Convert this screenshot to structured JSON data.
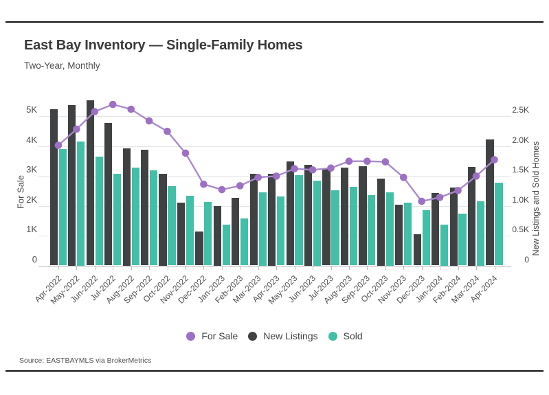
{
  "header": {
    "title": "East Bay Inventory — Single-Family Homes",
    "subtitle": "Two-Year, Monthly"
  },
  "source": {
    "text": "Source:  EASTBAYMLS via BrokerMetrics"
  },
  "colors": {
    "new_listings_bar": "#3f4142",
    "sold_bar": "#42bfa7",
    "for_sale_line": "#a98acb",
    "for_sale_dot": "#9c70c2",
    "gridline": "#e4e4e4",
    "baseline": "#c2c2c2"
  },
  "legend": {
    "items": [
      {
        "label": "For Sale",
        "color": "#9c70c2"
      },
      {
        "label": "New Listings",
        "color": "#3f4142"
      },
      {
        "label": "Sold",
        "color": "#42bfa7"
      }
    ]
  },
  "chart_data": {
    "type": "bar",
    "subtype": "grouped bars with overlaid line",
    "title": "East Bay Inventory — Single-Family Homes",
    "subtitle": "Two-Year, Monthly",
    "categories": [
      "Apr-2022",
      "May-2022",
      "Jun-2022",
      "Jul-2022",
      "Aug-2022",
      "Sep-2022",
      "Oct-2022",
      "Nov-2022",
      "Dec-2022",
      "Jan-2023",
      "Feb-2023",
      "Mar-2023",
      "Apr-2023",
      "May-2023",
      "Jun-2023",
      "Jul-2023",
      "Aug-2023",
      "Sep-2023",
      "Oct-2023",
      "Nov-2023",
      "Dec-2023",
      "Jan-2024",
      "Feb-2024",
      "Mar-2024",
      "Apr-2024"
    ],
    "series": [
      {
        "name": "For Sale",
        "type": "line",
        "axis": "left",
        "values": [
          4020,
          4560,
          5150,
          5390,
          5230,
          4840,
          4490,
          3760,
          2720,
          2540,
          2670,
          2950,
          2990,
          3240,
          3200,
          3260,
          3490,
          3490,
          3470,
          2950,
          2150,
          2280,
          2510,
          2990,
          3540
        ]
      },
      {
        "name": "New Listings",
        "type": "bar",
        "axis": "right",
        "values": [
          2620,
          2690,
          2760,
          2390,
          1960,
          1940,
          1540,
          1050,
          570,
          1000,
          1130,
          1530,
          1540,
          1740,
          1690,
          1610,
          1640,
          1660,
          1460,
          1020,
          520,
          1210,
          1310,
          1650,
          2110
        ]
      },
      {
        "name": "Sold",
        "type": "bar",
        "axis": "right",
        "values": [
          1950,
          2080,
          1820,
          1530,
          1640,
          1590,
          1330,
          1170,
          1060,
          680,
          790,
          1230,
          1160,
          1510,
          1420,
          1260,
          1320,
          1180,
          1230,
          1050,
          930,
          690,
          870,
          1080,
          1380
        ]
      }
    ],
    "left_axis": {
      "title": "For Sale",
      "ticks": [
        "0",
        "1K",
        "2K",
        "3K",
        "4K",
        "5K"
      ],
      "range": [
        0,
        5000
      ]
    },
    "right_axis": {
      "title": "New Listings and Sold Homes",
      "ticks": [
        "0",
        "0.5K",
        "1.0K",
        "1.5K",
        "2.0K",
        "2.5K"
      ],
      "range": [
        0,
        2500
      ]
    },
    "grid": true,
    "legend_position": "bottom"
  }
}
